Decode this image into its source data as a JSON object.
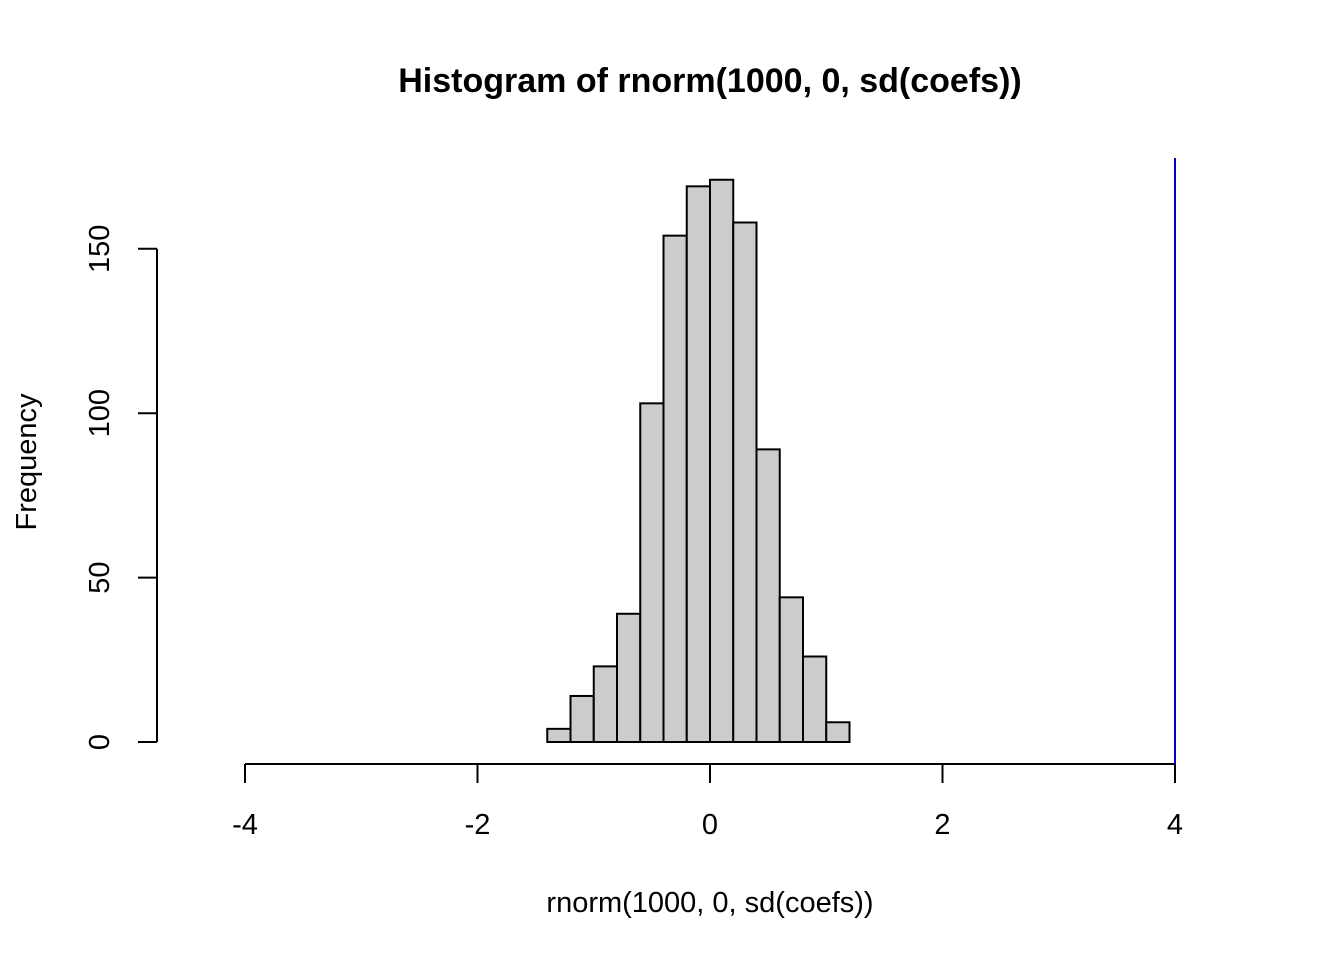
{
  "chart_data": {
    "type": "bar",
    "title": "Histogram of rnorm(1000, 0, sd(coefs))",
    "xlabel": "rnorm(1000, 0, sd(coefs))",
    "ylabel": "Frequency",
    "xlim": [
      -4,
      4
    ],
    "ylim": [
      0,
      175
    ],
    "x_ticks": [
      -4,
      -2,
      0,
      2,
      4
    ],
    "y_ticks": [
      0,
      50,
      100,
      150
    ],
    "bin_width": 0.2,
    "bins": [
      {
        "start": -1.4,
        "end": -1.2,
        "count": 4
      },
      {
        "start": -1.2,
        "end": -1.0,
        "count": 14
      },
      {
        "start": -1.0,
        "end": -0.8,
        "count": 23
      },
      {
        "start": -0.8,
        "end": -0.6,
        "count": 39
      },
      {
        "start": -0.6,
        "end": -0.4,
        "count": 103
      },
      {
        "start": -0.4,
        "end": -0.2,
        "count": 154
      },
      {
        "start": -0.2,
        "end": 0.0,
        "count": 169
      },
      {
        "start": 0.0,
        "end": 0.2,
        "count": 171
      },
      {
        "start": 0.2,
        "end": 0.4,
        "count": 158
      },
      {
        "start": 0.4,
        "end": 0.6,
        "count": 89
      },
      {
        "start": 0.6,
        "end": 0.8,
        "count": 44
      },
      {
        "start": 0.8,
        "end": 1.0,
        "count": 26
      },
      {
        "start": 1.0,
        "end": 1.2,
        "count": 6
      }
    ],
    "vertical_line": {
      "x": 4.0,
      "color": "#0000cc"
    },
    "bar_fill": "#cccccc",
    "bar_stroke": "#000000",
    "grid": false,
    "legend": "none"
  }
}
